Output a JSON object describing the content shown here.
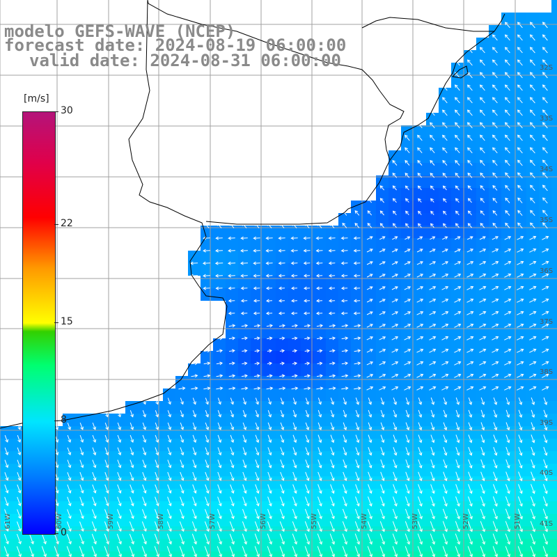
{
  "title": {
    "line1": "modelo GEFS-WAVE (NCEP)",
    "line2": "forecast date: 2024-08-19 06:00:00",
    "line3": "valid date: 2024-08-31 06:00:00"
  },
  "colorbar": {
    "unit": "[m/s]",
    "ticks": [
      {
        "label": "30",
        "value": 30
      },
      {
        "label": "22",
        "value": 22
      },
      {
        "label": "15",
        "value": 15
      },
      {
        "label": "8",
        "value": 8
      },
      {
        "label": "0",
        "value": 0
      }
    ]
  },
  "latitude_labels": [
    "32S",
    "33S",
    "34S",
    "35S",
    "36S",
    "37S",
    "38S",
    "39S",
    "40S",
    "41S"
  ],
  "longitude_labels": [
    "61W",
    "60W",
    "59W",
    "58W",
    "57W",
    "56W",
    "55W",
    "54W",
    "53W",
    "52W",
    "51W"
  ],
  "colors": {
    "land": "#ffffff",
    "coast": "#000000",
    "grid": "#a0a0a0",
    "arrows": "#ffffff",
    "title": "#8a8a8a"
  }
}
